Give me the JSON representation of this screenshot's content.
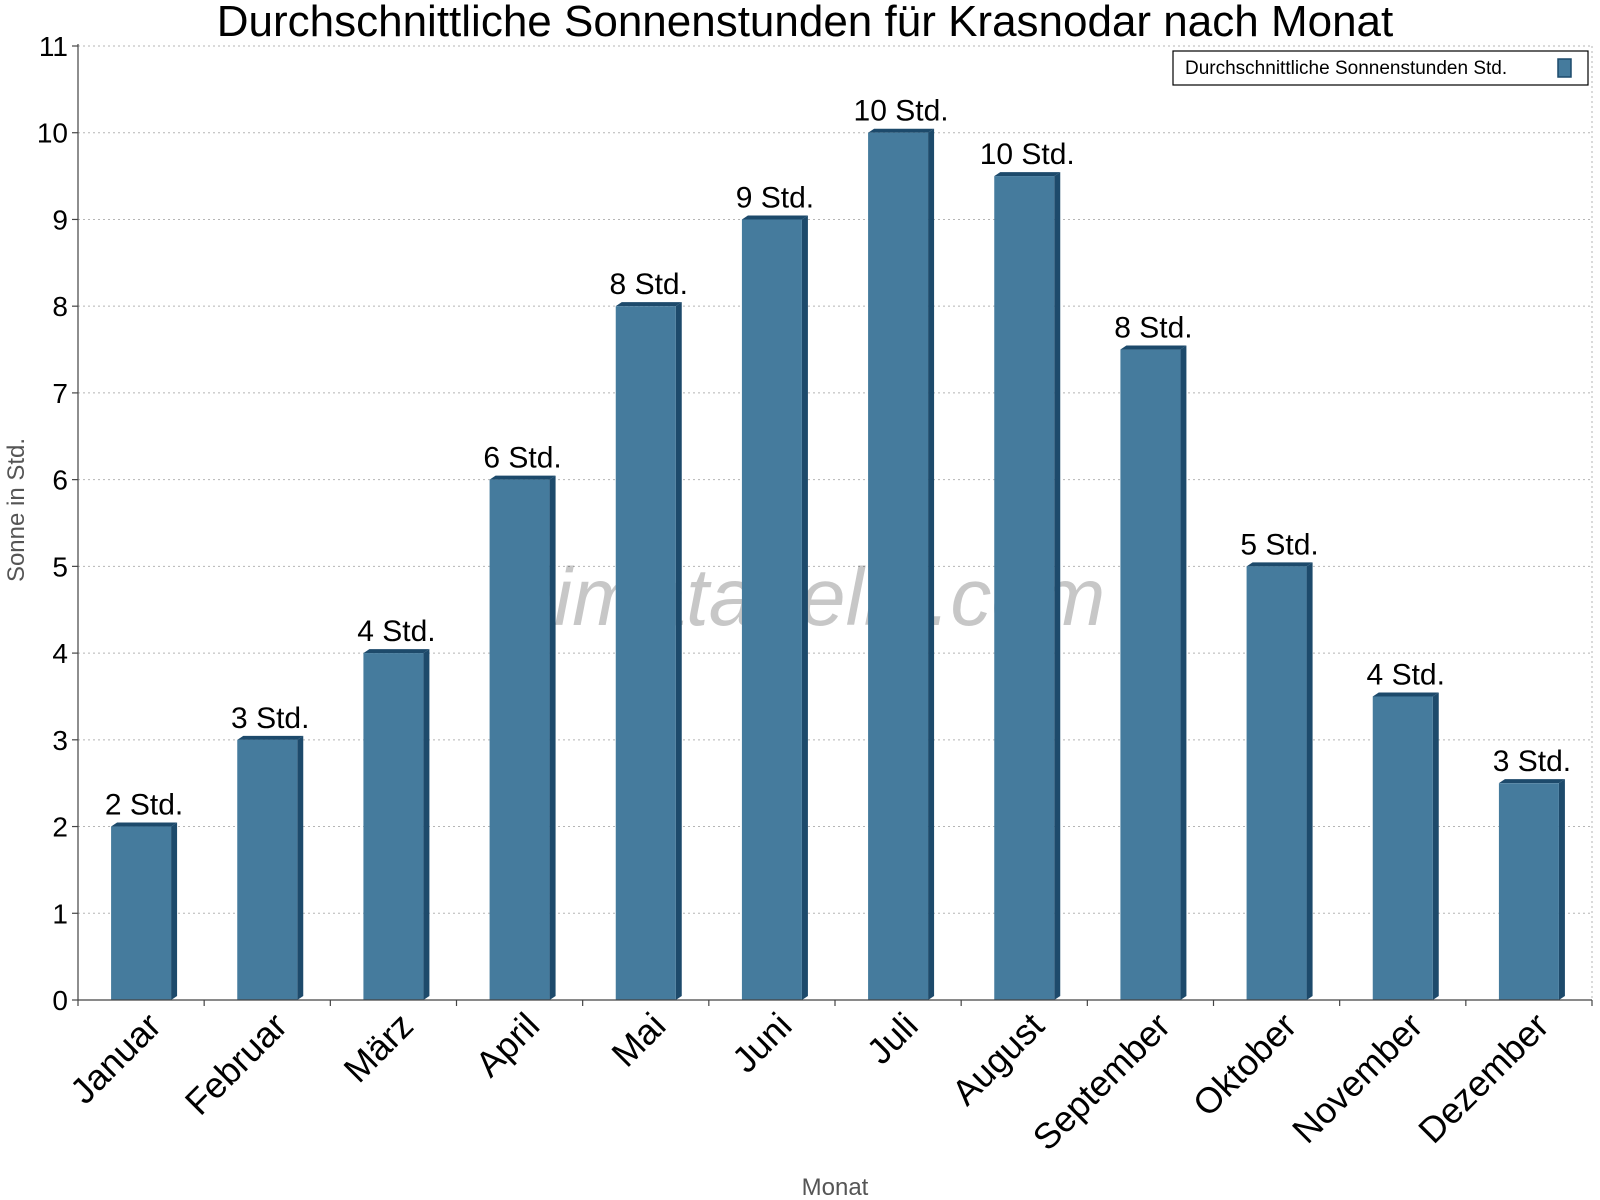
{
  "chart_data": {
    "type": "bar",
    "title": "Durchschnittliche Sonnenstunden für Krasnodar nach Monat",
    "xlabel": "Monat",
    "ylabel": "Sonne in Std.",
    "ylim": [
      0,
      11
    ],
    "yticks": [
      0,
      1,
      2,
      3,
      4,
      5,
      6,
      7,
      8,
      9,
      10,
      11
    ],
    "grid": true,
    "legend_position": "top-right",
    "categories": [
      "Januar",
      "Februar",
      "März",
      "April",
      "Mai",
      "Juni",
      "Juli",
      "August",
      "September",
      "Oktober",
      "November",
      "Dezember"
    ],
    "series": [
      {
        "name": "Durchschnittliche Sonnenstunden Std.",
        "color": "#457b9d",
        "values": [
          2,
          3,
          4,
          6,
          8,
          9,
          10,
          9.5,
          7.5,
          5,
          3.5,
          2.5
        ],
        "labels": [
          "2 Std.",
          "3 Std.",
          "4 Std.",
          "6 Std.",
          "8 Std.",
          "9 Std.",
          "10 Std.",
          "10 Std.",
          "8 Std.",
          "5 Std.",
          "4 Std.",
          "3 Std."
        ]
      }
    ]
  },
  "watermark": "klimatabelle.com"
}
